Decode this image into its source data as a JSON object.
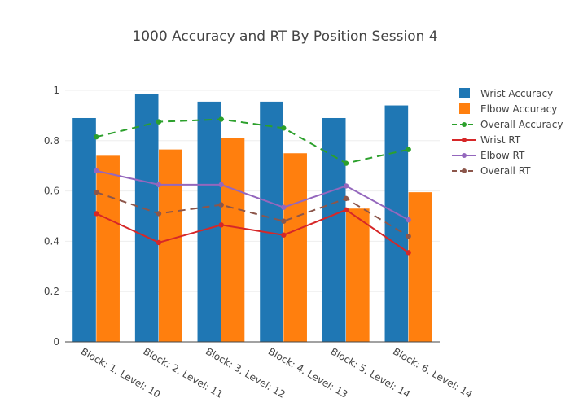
{
  "chart_data": {
    "type": "bar",
    "title": "1000 Accuracy and RT By Position Session 4",
    "xlabel": "",
    "ylabel": "",
    "ylim": [
      0,
      1.0
    ],
    "yticks": [
      0,
      0.2,
      0.4,
      0.6,
      0.8,
      1
    ],
    "ytick_labels": [
      "0",
      "0.2",
      "0.4",
      "0.6",
      "0.8",
      "1"
    ],
    "grid": true,
    "legend_position": "top-right",
    "categories": [
      "Block: 1, Level: 10",
      "Block: 2, Level: 11",
      "Block: 3, Level: 12",
      "Block: 4, Level: 13",
      "Block: 5, Level: 14",
      "Block: 6, Level: 14"
    ],
    "series": [
      {
        "name": "Wrist Accuracy",
        "kind": "bar",
        "color": "#1f77b4",
        "values": [
          0.89,
          0.985,
          0.955,
          0.955,
          0.89,
          0.94
        ]
      },
      {
        "name": "Elbow Accuracy",
        "kind": "bar",
        "color": "#ff7f0e",
        "values": [
          0.74,
          0.765,
          0.81,
          0.75,
          0.53,
          0.595
        ]
      },
      {
        "name": "Overall Accuracy",
        "kind": "line",
        "dash": "dash",
        "color": "#2ca02c",
        "values": [
          0.815,
          0.875,
          0.885,
          0.85,
          0.71,
          0.765
        ]
      },
      {
        "name": "Wrist RT",
        "kind": "line",
        "dash": "solid",
        "color": "#d62728",
        "values": [
          0.51,
          0.395,
          0.465,
          0.425,
          0.525,
          0.355
        ]
      },
      {
        "name": "Elbow RT",
        "kind": "line",
        "dash": "solid",
        "color": "#9467bd",
        "values": [
          0.68,
          0.625,
          0.625,
          0.535,
          0.62,
          0.485
        ]
      },
      {
        "name": "Overall RT",
        "kind": "line",
        "dash": "dash",
        "color": "#8c564b",
        "values": [
          0.595,
          0.51,
          0.545,
          0.48,
          0.57,
          0.42
        ]
      }
    ]
  }
}
